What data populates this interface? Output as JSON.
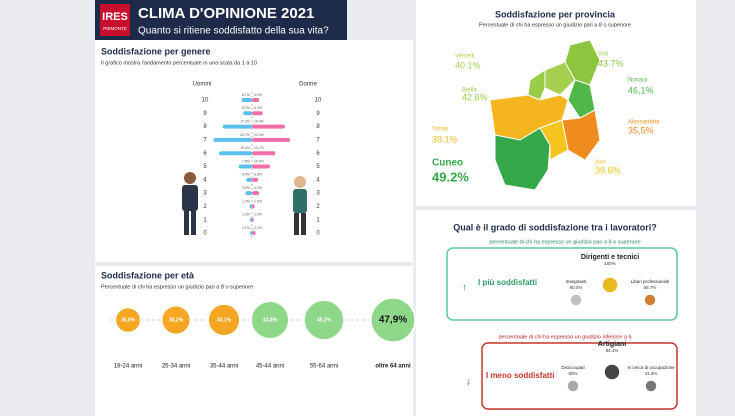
{
  "header": {
    "logo": "IRES",
    "logo_sub": "PIEMONTE",
    "title": "CLIMA D'OPINIONE 2021",
    "subtitle": "Quanto si ritiene soddisfatto della sua vita?"
  },
  "gender": {
    "title": "Soddisfazione per genere",
    "subtitle": "Il grafico mostra l'andamento percentuale in una scala da 1 a 10",
    "men_label": "Uomini",
    "women_label": "Donne",
    "scores": [
      10,
      9,
      8,
      7,
      6,
      5,
      4,
      3,
      2,
      1,
      0
    ],
    "men": [
      6.1,
      5.2,
      17.2,
      22.7,
      19.4,
      7.8,
      3.4,
      3.9,
      1.4,
      1.3,
      1.1
    ],
    "men_labels": [
      "6.1%",
      "5.2%",
      "17.2%",
      "22.7%",
      "19.4%",
      "7.8%",
      "3.4%",
      "3.9%",
      "1.4%",
      "1.3%",
      "1.1%"
    ],
    "women": [
      4.2,
      6.3,
      19.4,
      22.4,
      13.7,
      10.6,
      3.6,
      4.2,
      1.6,
      1.0,
      2.1
    ],
    "women_labels": [
      "4.2%",
      "6.3%",
      "19.4%",
      "22.4%",
      "13.7%",
      "10.6%",
      "3.6%",
      "4.2%",
      "1.6%",
      "1.0%",
      "2.1%"
    ]
  },
  "age": {
    "title": "Soddisfazione per età",
    "subtitle": "Percentuale di chi ha espresso un giudizio pari a 8 o superiore",
    "groups": [
      {
        "name": "18-24 anni",
        "value": 36.0,
        "label": "36,0%"
      },
      {
        "name": "25-34 anni",
        "value": 38.2,
        "label": "38,2%"
      },
      {
        "name": "35-44 anni",
        "value": 40.1,
        "label": "40,1%"
      },
      {
        "name": "45-44 anni",
        "value": 43.8,
        "label": "43,8%"
      },
      {
        "name": "55-64 anni",
        "value": 45.2,
        "label": "45,2%"
      },
      {
        "name": "oltre 64 anni",
        "value": 47.9,
        "label": "47,9%"
      }
    ]
  },
  "province": {
    "title": "Soddisfazione per provincia",
    "subtitle": "Percentuale di chi ha espresso un giudizio pari a 8 o superiore",
    "items": [
      {
        "name": "Vercelli",
        "value": 40.1,
        "label": "40.1%",
        "color": "#a6cf4f"
      },
      {
        "name": "Vco",
        "value": 43.7,
        "label": "43.7%",
        "color": "#8cc63f"
      },
      {
        "name": "Biella",
        "value": 42.6,
        "label": "42.6%",
        "color": "#9acd45"
      },
      {
        "name": "Novara",
        "value": 46.1,
        "label": "46,1%",
        "color": "#4fb848"
      },
      {
        "name": "Alessandria",
        "value": 35.5,
        "label": "35,5%",
        "color": "#f08c1e"
      },
      {
        "name": "Torino",
        "value": 39.1,
        "label": "39.1%",
        "color": "#f5b51e"
      },
      {
        "name": "Cuneo",
        "value": 49.2,
        "label": "49.2%",
        "color": "#35a84a"
      },
      {
        "name": "Asti",
        "value": 39.6,
        "label": "39.6%",
        "color": "#f5c41e"
      }
    ]
  },
  "workers": {
    "title": "Qual è il grado di soddisfazione tra i lavoratori?",
    "top": {
      "subtitle": "percentuale di chi ha espresso un giudizio pari a 8 o superiore",
      "label": "I più soddisfatti",
      "items": [
        {
          "name": "Dirigenti e tecnici",
          "value": 100,
          "label": "100%"
        },
        {
          "name": "Insegnanti",
          "value": 90.4,
          "label": "90.4%"
        },
        {
          "name": "Liberi professionisti",
          "value": 58.7,
          "label": "58.7%"
        }
      ]
    },
    "bottom": {
      "subtitle": "percentuale di chi ha espresso un giudizio inferiore a 6",
      "label": "I meno soddisfatti",
      "items": [
        {
          "name": "Artigiani",
          "value": 64.4,
          "label": "64.4%"
        },
        {
          "name": "Disoccupati",
          "value": 50,
          "label": "50%"
        },
        {
          "name": "In cerca di occupazione",
          "value": 41.3,
          "label": "41.3%"
        }
      ]
    }
  }
}
